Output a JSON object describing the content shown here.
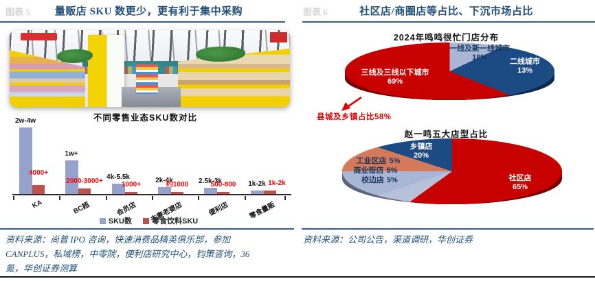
{
  "left_panel": {
    "figure_tag": "图表 5",
    "title": "量贩店 SKU 数更少，更有利于集中采购",
    "photo": "snack-supermarket-interior",
    "source_lines": [
      "资料来源：尚普 IPO 咨询，快速消费品精英俱乐部，参加",
      "CANPLUS，私域榜，中零院，便利店研究中心，钧策咨询，36",
      "氪，华创证券测算"
    ]
  },
  "right_panel": {
    "figure_tag": "图表 6",
    "title": "社区店/商圈店等占比、下沉市场占比",
    "source_lines": [
      "资料来源：公司公告，渠道调研，华创证券"
    ]
  },
  "chart_data": [
    {
      "type": "bar",
      "title": "不同零售业态SKU数对比",
      "categories": [
        "KA",
        "BC超",
        "会员店",
        "夫妻老婆店",
        "便利店",
        "零食量贩"
      ],
      "series": [
        {
          "name": "SKU数",
          "color": "#95A3CC",
          "labels": [
            "2w-4w",
            "1w+",
            "4k-5.5k",
            "2k-4k",
            "2.5k-3k",
            "1k-2k"
          ],
          "values": [
            30000,
            15000,
            4750,
            3000,
            2750,
            1500
          ]
        },
        {
          "name": "零食饮料SKU",
          "color": "#C0504D",
          "labels": [
            "4000+",
            "2000-3000+",
            "1000+",
            "约1000",
            "500-800",
            "1k-2k"
          ],
          "values": [
            4000,
            2500,
            1000,
            1000,
            650,
            1500
          ]
        }
      ],
      "ylim": [
        0,
        30000
      ],
      "legend_position": "bottom",
      "grid": false
    },
    {
      "type": "pie",
      "title": "2024年鸣鸣很忙门店分布",
      "slices": [
        {
          "label": "一线及新一线城市",
          "value": 18,
          "pct": "18%",
          "color": "#A9B6D6"
        },
        {
          "label": "二线城市",
          "value": 13,
          "pct": "13%",
          "color": "#1C4B84"
        },
        {
          "label": "三线及三线以下城市",
          "value": 69,
          "pct": "69%",
          "color": "#C70000"
        }
      ],
      "annotation": "县城及乡镇占比58%",
      "style": "3d",
      "start_angle": "top-clockwise"
    },
    {
      "type": "pie",
      "title": "赵一鸣五大店型占比",
      "slices": [
        {
          "label": "社区店",
          "value": 65,
          "pct": "65%",
          "color": "#C70000"
        },
        {
          "label": "校边店",
          "value": 5,
          "pct": "5%",
          "color": "#B7C1DA"
        },
        {
          "label": "商业街店",
          "value": 5,
          "pct": "5%",
          "color": "#A9B6D6"
        },
        {
          "label": "工业区店",
          "value": 5,
          "pct": "5%",
          "color": "#D4795B"
        },
        {
          "label": "乡镇店",
          "value": 20,
          "pct": "20%",
          "color": "#1C4B84"
        }
      ],
      "style": "3d",
      "start_angle": "top-clockwise"
    }
  ],
  "colors": {
    "title_navy": "#1F4E79",
    "rule_navy": "#2E5B94",
    "red_label": "#FE0000",
    "annotation_red": "#E00000"
  }
}
